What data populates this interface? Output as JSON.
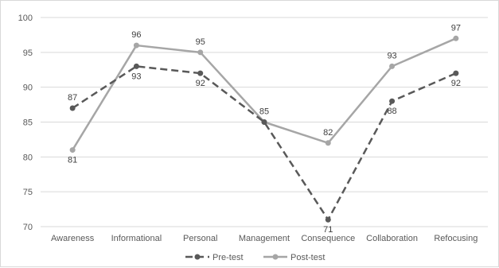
{
  "chart_data": {
    "type": "line",
    "title": "",
    "xlabel": "",
    "ylabel": "",
    "categories": [
      "Awareness",
      "Informational",
      "Personal",
      "Management",
      "Consequence",
      "Collaboration",
      "Refocusing"
    ],
    "ylim": [
      70,
      100
    ],
    "yticks": [
      70,
      75,
      80,
      85,
      90,
      95,
      100
    ],
    "grid": true,
    "legend": "bottom",
    "series": [
      {
        "name": "Pre-test",
        "values": [
          87,
          93,
          92,
          85,
          71,
          88,
          92
        ],
        "color": "#595959",
        "style": "dashed"
      },
      {
        "name": "Post-test",
        "values": [
          81,
          96,
          95,
          85,
          82,
          93,
          97
        ],
        "color": "#a6a6a6",
        "style": "solid"
      }
    ]
  }
}
